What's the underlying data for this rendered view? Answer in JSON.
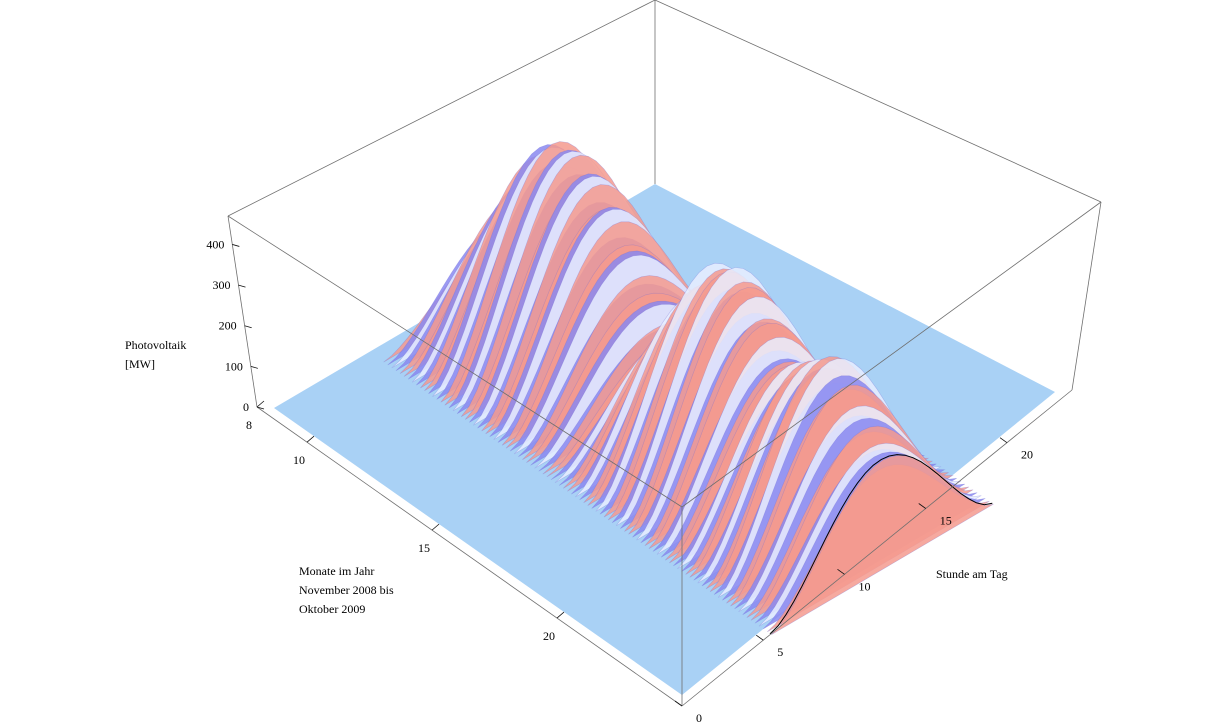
{
  "chart_data": {
    "type": "surface-3d",
    "title": "",
    "z_axis": {
      "label_lines": [
        "Photovoltaik",
        "[MW]"
      ],
      "ticks": [
        0,
        100,
        200,
        300,
        400
      ],
      "range": [
        0,
        470
      ]
    },
    "x_axis": {
      "label_lines": [
        "Monate im Jahr",
        "November 2008 bis",
        "Oktober 2009"
      ],
      "ticks": [
        8,
        10,
        15,
        20
      ],
      "range": [
        8,
        25
      ]
    },
    "y_axis": {
      "label_lines": [
        "Stunde am Tag"
      ],
      "ticks": [
        0,
        5,
        10,
        15,
        20
      ],
      "range": [
        0,
        24
      ]
    },
    "surface": {
      "description_free": true,
      "daylight_hours": {
        "start": 6,
        "end": 20,
        "peak_hour": 13
      },
      "monthly_peak_mw": [
        {
          "x": 8.5,
          "peak": 150
        },
        {
          "x": 9.5,
          "peak": 290
        },
        {
          "x": 10.5,
          "peak": 430
        },
        {
          "x": 11.5,
          "peak": 455
        },
        {
          "x": 12.5,
          "peak": 420
        },
        {
          "x": 13.5,
          "peak": 360
        },
        {
          "x": 14.5,
          "peak": 250
        },
        {
          "x": 15.5,
          "peak": 160
        },
        {
          "x": 16.5,
          "peak": 300
        },
        {
          "x": 17.5,
          "peak": 420
        },
        {
          "x": 18.5,
          "peak": 440
        },
        {
          "x": 19.5,
          "peak": 380
        },
        {
          "x": 20.5,
          "peak": 300
        },
        {
          "x": 21.5,
          "peak": 350
        },
        {
          "x": 22.5,
          "peak": 400
        },
        {
          "x": 23.5,
          "peak": 310
        },
        {
          "x": 24.5,
          "peak": 250
        }
      ]
    },
    "colors": {
      "floor": "#a9d1f5",
      "pink": "#f59a8e",
      "violet": "#8a88f0",
      "white": "#e9efff",
      "dark": "#8a3b52"
    }
  }
}
